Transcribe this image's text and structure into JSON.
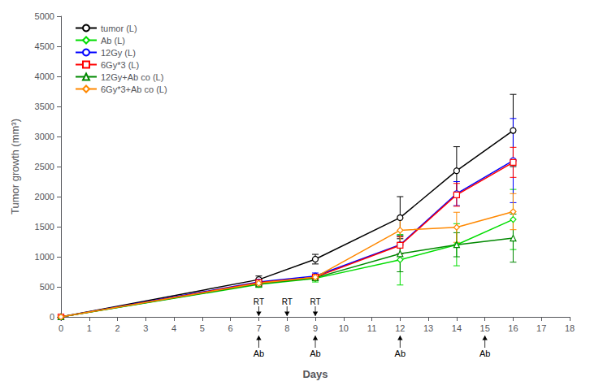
{
  "chart_data": {
    "type": "line",
    "xlabel": "Days",
    "ylabel": "Tumor growth (mm³)",
    "xlim": [
      0,
      18
    ],
    "ylim": [
      0,
      5000
    ],
    "xticks": [
      0,
      1,
      2,
      3,
      4,
      5,
      6,
      7,
      8,
      9,
      10,
      11,
      12,
      13,
      14,
      15,
      16,
      17,
      18
    ],
    "yticks": [
      0,
      500,
      1000,
      1500,
      2000,
      2500,
      3000,
      3500,
      4000,
      4500,
      5000
    ],
    "grid": false,
    "legend": "upper left",
    "series": [
      {
        "name": "tumor (L)",
        "color": "#000000",
        "marker": "circle",
        "x": [
          0,
          7,
          9,
          12,
          14,
          16
        ],
        "values": [
          0,
          620,
          960,
          1650,
          2430,
          3100
        ],
        "yerr": [
          0,
          60,
          80,
          350,
          400,
          600
        ]
      },
      {
        "name": "Ab (L)",
        "color": "#00dd00",
        "marker": "diamond",
        "x": [
          0,
          7,
          9,
          12,
          14,
          16
        ],
        "values": [
          0,
          540,
          640,
          950,
          1200,
          1620
        ],
        "yerr": [
          0,
          50,
          60,
          420,
          350,
          500
        ]
      },
      {
        "name": "12Gy (L)",
        "color": "#0000ff",
        "marker": "circle",
        "x": [
          0,
          7,
          9,
          12,
          14,
          16
        ],
        "values": [
          0,
          580,
          680,
          1200,
          2050,
          2600
        ],
        "yerr": [
          0,
          50,
          50,
          150,
          200,
          700
        ]
      },
      {
        "name": "6Gy*3 (L)",
        "color": "#ff0000",
        "marker": "square",
        "x": [
          0,
          7,
          9,
          12,
          14,
          16
        ],
        "values": [
          0,
          570,
          660,
          1190,
          2030,
          2570
        ],
        "yerr": [
          0,
          50,
          50,
          140,
          190,
          250
        ]
      },
      {
        "name": "12Gy+Ab co (L)",
        "color": "#008800",
        "marker": "triangle",
        "x": [
          0,
          7,
          9,
          12,
          14,
          16
        ],
        "values": [
          0,
          550,
          650,
          1050,
          1200,
          1310
        ],
        "yerr": [
          0,
          50,
          50,
          300,
          200,
          400
        ]
      },
      {
        "name": "6Gy*3+Ab co (L)",
        "color": "#ff8800",
        "marker": "diamond",
        "x": [
          0,
          7,
          9,
          12,
          14,
          16
        ],
        "values": [
          0,
          560,
          660,
          1440,
          1490,
          1750
        ],
        "yerr": [
          0,
          50,
          50,
          200,
          250,
          300
        ]
      }
    ],
    "annotations": [
      {
        "text": "Ab",
        "x": 7,
        "side": "below"
      },
      {
        "text": "Ab",
        "x": 9,
        "side": "below"
      },
      {
        "text": "Ab",
        "x": 12,
        "side": "below"
      },
      {
        "text": "Ab",
        "x": 15,
        "side": "below"
      },
      {
        "text": "RT",
        "x": 7,
        "side": "above"
      },
      {
        "text": "RT",
        "x": 8,
        "side": "above"
      },
      {
        "text": "RT",
        "x": 9,
        "side": "above"
      }
    ]
  }
}
